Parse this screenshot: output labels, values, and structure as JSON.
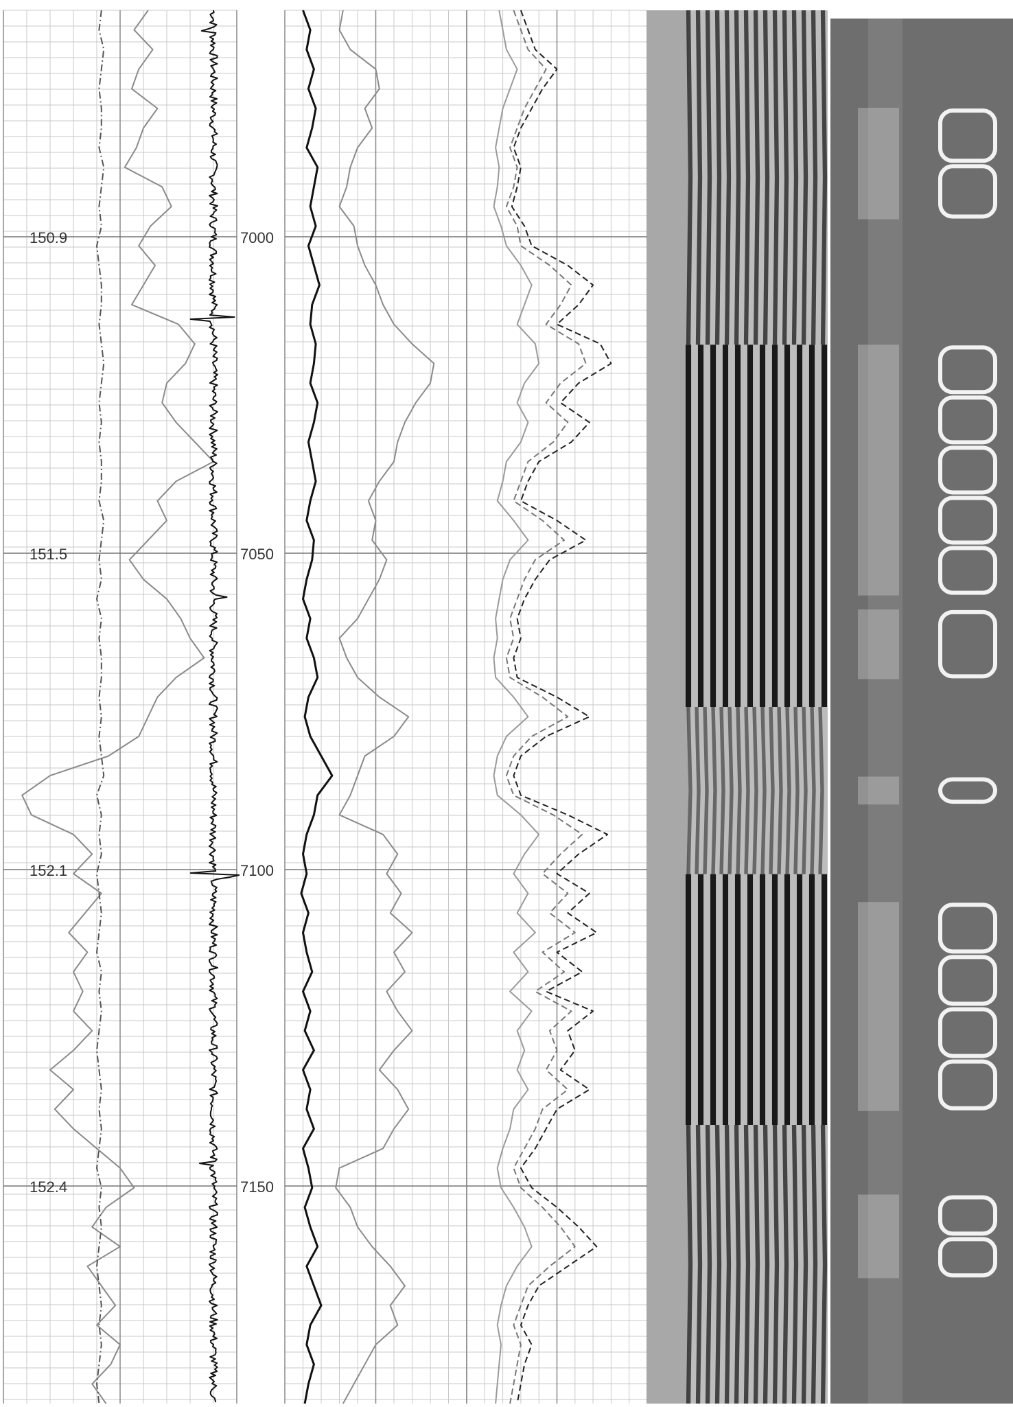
{
  "chart_data": {
    "type": "line",
    "title": "",
    "xlabel": "",
    "ylabel": "",
    "grid": true,
    "tracks": [
      {
        "name": "",
        "depth_ticks": [
          "150.9",
          "151.5",
          "152.1",
          "152.4"
        ],
        "curves": [
          {
            "name": "",
            "style": "solid",
            "color": "#8a8a8a",
            "values": [
              0.62,
              0.56,
              0.64,
              0.58,
              0.55,
              0.66,
              0.6,
              0.57,
              0.52,
              0.68,
              0.72,
              0.63,
              0.58,
              0.65,
              0.6,
              0.55,
              0.75,
              0.82,
              0.78,
              0.7,
              0.68,
              0.74,
              0.82,
              0.9,
              0.74,
              0.66,
              0.7,
              0.62,
              0.54,
              0.6,
              0.7,
              0.76,
              0.8,
              0.86,
              0.74,
              0.66,
              0.62,
              0.58,
              0.45,
              0.2,
              0.08,
              0.12,
              0.3,
              0.38,
              0.3,
              0.42,
              0.35,
              0.28,
              0.36,
              0.3,
              0.34,
              0.3,
              0.38,
              0.3,
              0.2,
              0.3,
              0.22,
              0.3,
              0.4,
              0.5,
              0.56,
              0.44,
              0.38,
              0.5,
              0.36,
              0.42,
              0.48,
              0.4,
              0.5,
              0.46,
              0.38,
              0.44
            ]
          },
          {
            "name": "",
            "style": "dashdot",
            "color": "#555555",
            "values": [
              0.42,
              0.41,
              0.43,
              0.42,
              0.41,
              0.42,
              0.42,
              0.41,
              0.43,
              0.42,
              0.41,
              0.42,
              0.4,
              0.41,
              0.42,
              0.42,
              0.41,
              0.42,
              0.43,
              0.42,
              0.41,
              0.42,
              0.41,
              0.42,
              0.42,
              0.41,
              0.43,
              0.42,
              0.41,
              0.42,
              0.4,
              0.42,
              0.41,
              0.42,
              0.42,
              0.41,
              0.42,
              0.41,
              0.42,
              0.43,
              0.4,
              0.42,
              0.41,
              0.42,
              0.4,
              0.41,
              0.42,
              0.41,
              0.4,
              0.42,
              0.41,
              0.42,
              0.41,
              0.4,
              0.41,
              0.42,
              0.41,
              0.42,
              0.41,
              0.4,
              0.42,
              0.41,
              0.42,
              0.41,
              0.4,
              0.41,
              0.42,
              0.41,
              0.42,
              0.41,
              0.4,
              0.41
            ]
          },
          {
            "name": "",
            "style": "spiky",
            "color": "#111111",
            "values": [
              0.9,
              0.88,
              0.92,
              0.89,
              0.9,
              0.91,
              0.88,
              0.9,
              0.92,
              0.89,
              0.9,
              0.88,
              0.91,
              0.9,
              0.89,
              0.92,
              0.9,
              0.88,
              0.91,
              0.9,
              0.89,
              0.9,
              0.92,
              0.88,
              0.9,
              0.91,
              0.89,
              0.9,
              0.88,
              0.92,
              0.9,
              0.89,
              0.91,
              0.9,
              0.88,
              0.9,
              0.92,
              0.89,
              0.9,
              0.91,
              0.88,
              0.9,
              0.92,
              0.89,
              0.9,
              0.88,
              0.91,
              0.9,
              0.89,
              0.92,
              0.9,
              0.88,
              0.91,
              0.9,
              0.89,
              0.9,
              0.92,
              0.88,
              0.9,
              0.91,
              0.89,
              0.9,
              0.88,
              0.92,
              0.9,
              0.89,
              0.91,
              0.9,
              0.88,
              0.9,
              0.92,
              0.89
            ]
          }
        ]
      },
      {
        "name": "",
        "depth_ticks": [
          "7000",
          "7050",
          "7100",
          "7150"
        ],
        "depth_range": [
          6965,
          7188
        ],
        "curves": [
          {
            "name": "",
            "style": "solid-heavy",
            "color": "#111111",
            "values": [
              0.1,
              0.14,
              0.12,
              0.16,
              0.13,
              0.17,
              0.15,
              0.12,
              0.18,
              0.16,
              0.14,
              0.17,
              0.13,
              0.16,
              0.19,
              0.15,
              0.14,
              0.17,
              0.16,
              0.14,
              0.18,
              0.16,
              0.13,
              0.15,
              0.17,
              0.14,
              0.12,
              0.16,
              0.15,
              0.12,
              0.1,
              0.14,
              0.12,
              0.16,
              0.18,
              0.13,
              0.11,
              0.14,
              0.2,
              0.26,
              0.18,
              0.16,
              0.12,
              0.1,
              0.12,
              0.09,
              0.13,
              0.1,
              0.12,
              0.15,
              0.1,
              0.14,
              0.11,
              0.16,
              0.1,
              0.14,
              0.12,
              0.16,
              0.1,
              0.13,
              0.15,
              0.11,
              0.14,
              0.18,
              0.12,
              0.16,
              0.2,
              0.14,
              0.12,
              0.16,
              0.13,
              0.11
            ]
          },
          {
            "name": "",
            "style": "solid",
            "color": "#8a8a8a",
            "values": [
              0.32,
              0.3,
              0.36,
              0.5,
              0.52,
              0.44,
              0.48,
              0.4,
              0.36,
              0.34,
              0.3,
              0.38,
              0.4,
              0.44,
              0.5,
              0.54,
              0.6,
              0.7,
              0.82,
              0.8,
              0.72,
              0.66,
              0.62,
              0.6,
              0.52,
              0.46,
              0.5,
              0.48,
              0.56,
              0.52,
              0.46,
              0.4,
              0.3,
              0.34,
              0.4,
              0.52,
              0.68,
              0.6,
              0.44,
              0.4,
              0.36,
              0.3,
              0.54,
              0.62,
              0.56,
              0.64,
              0.58,
              0.7,
              0.6,
              0.66,
              0.56,
              0.62,
              0.7,
              0.6,
              0.52,
              0.62,
              0.68,
              0.6,
              0.54,
              0.3,
              0.28,
              0.36,
              0.4,
              0.48,
              0.58,
              0.66,
              0.58,
              0.62,
              0.5,
              0.44,
              0.38,
              0.32
            ]
          }
        ]
      },
      {
        "name": "",
        "curves": [
          {
            "name": "",
            "style": "dashed",
            "color": "#222222",
            "values": [
              0.3,
              0.34,
              0.38,
              0.5,
              0.42,
              0.36,
              0.3,
              0.26,
              0.3,
              0.28,
              0.25,
              0.32,
              0.36,
              0.56,
              0.7,
              0.62,
              0.5,
              0.74,
              0.8,
              0.62,
              0.52,
              0.68,
              0.58,
              0.4,
              0.34,
              0.3,
              0.5,
              0.66,
              0.46,
              0.38,
              0.32,
              0.28,
              0.3,
              0.26,
              0.28,
              0.5,
              0.68,
              0.44,
              0.3,
              0.26,
              0.3,
              0.56,
              0.78,
              0.62,
              0.5,
              0.68,
              0.56,
              0.72,
              0.5,
              0.64,
              0.44,
              0.7,
              0.56,
              0.6,
              0.52,
              0.68,
              0.5,
              0.44,
              0.38,
              0.3,
              0.36,
              0.5,
              0.62,
              0.72,
              0.56,
              0.4,
              0.34,
              0.3,
              0.36,
              0.32,
              0.3,
              0.28
            ]
          },
          {
            "name": "",
            "style": "dashed",
            "color": "#777777",
            "values": [
              0.26,
              0.3,
              0.34,
              0.44,
              0.38,
              0.32,
              0.28,
              0.24,
              0.28,
              0.26,
              0.22,
              0.28,
              0.3,
              0.46,
              0.58,
              0.52,
              0.44,
              0.62,
              0.66,
              0.52,
              0.44,
              0.56,
              0.48,
              0.34,
              0.3,
              0.26,
              0.42,
              0.54,
              0.38,
              0.32,
              0.28,
              0.24,
              0.26,
              0.22,
              0.24,
              0.42,
              0.56,
              0.36,
              0.26,
              0.22,
              0.26,
              0.48,
              0.64,
              0.52,
              0.42,
              0.56,
              0.46,
              0.6,
              0.42,
              0.54,
              0.38,
              0.58,
              0.46,
              0.5,
              0.44,
              0.56,
              0.42,
              0.38,
              0.32,
              0.26,
              0.3,
              0.42,
              0.52,
              0.6,
              0.46,
              0.34,
              0.3,
              0.26,
              0.3,
              0.28,
              0.26,
              0.24
            ]
          },
          {
            "name": "",
            "style": "solid",
            "color": "#9a9a9a",
            "values": [
              0.18,
              0.2,
              0.22,
              0.28,
              0.24,
              0.2,
              0.18,
              0.16,
              0.18,
              0.17,
              0.15,
              0.19,
              0.22,
              0.3,
              0.36,
              0.32,
              0.28,
              0.38,
              0.4,
              0.32,
              0.28,
              0.34,
              0.3,
              0.22,
              0.2,
              0.17,
              0.26,
              0.34,
              0.24,
              0.2,
              0.18,
              0.16,
              0.17,
              0.15,
              0.16,
              0.26,
              0.34,
              0.22,
              0.17,
              0.15,
              0.17,
              0.3,
              0.4,
              0.32,
              0.26,
              0.34,
              0.28,
              0.38,
              0.26,
              0.34,
              0.24,
              0.36,
              0.28,
              0.32,
              0.28,
              0.34,
              0.26,
              0.24,
              0.2,
              0.17,
              0.19,
              0.26,
              0.32,
              0.36,
              0.28,
              0.22,
              0.19,
              0.17,
              0.19,
              0.18,
              0.17,
              0.16
            ]
          }
        ]
      }
    ],
    "image_tracks": [
      {
        "name": "",
        "kind": "waveform-variable-density",
        "bands": [
          [
            0.0,
            0.24,
            "medium"
          ],
          [
            0.24,
            0.5,
            "strong"
          ],
          [
            0.5,
            0.62,
            "weak"
          ],
          [
            0.62,
            0.8,
            "strong"
          ],
          [
            0.8,
            1.0,
            "medium"
          ]
        ]
      },
      {
        "name": "",
        "kind": "grayscale-image",
        "bright_zones": [
          [
            0.07,
            0.15
          ],
          [
            0.24,
            0.42
          ],
          [
            0.43,
            0.48
          ],
          [
            0.55,
            0.57
          ],
          [
            0.64,
            0.79
          ],
          [
            0.85,
            0.91
          ]
        ]
      }
    ]
  }
}
